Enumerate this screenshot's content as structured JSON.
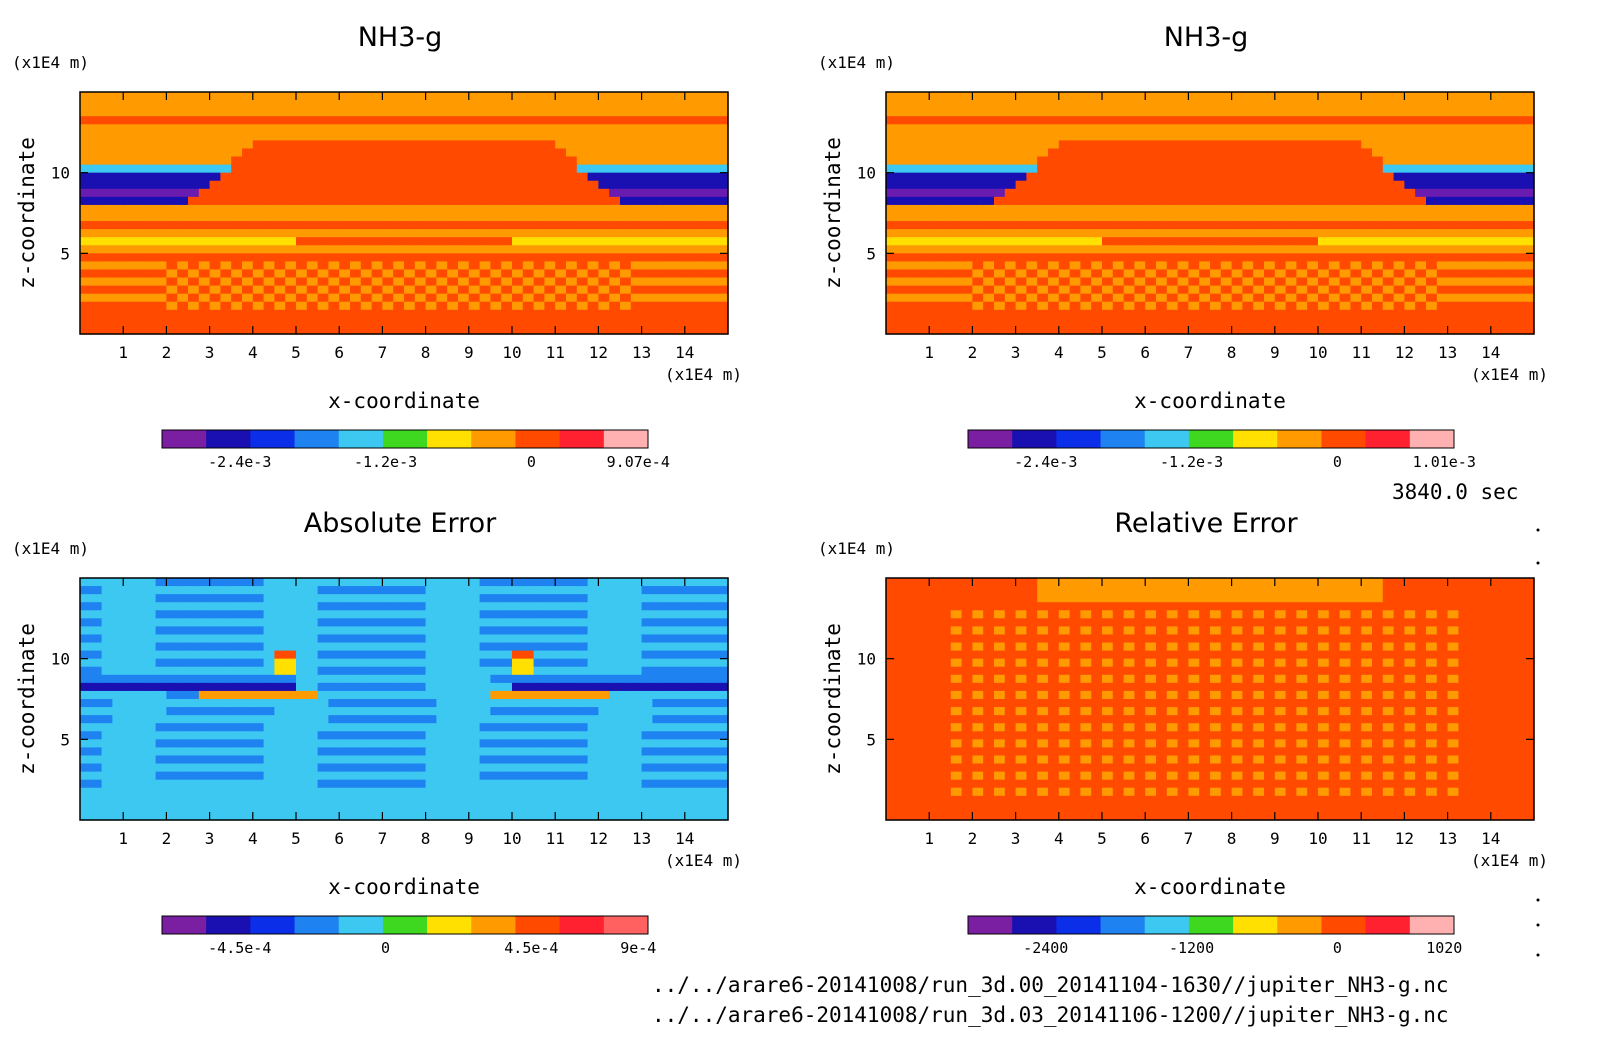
{
  "chart_data": [
    {
      "type": "heatmap",
      "title": "NH3-g",
      "xlabel": "x-coordinate",
      "ylabel": "z-coordinate",
      "x_unit": "(x1E4 m)",
      "z_unit": "(x1E4 m)",
      "x_ticks": [
        "1",
        "2",
        "3",
        "4",
        "5",
        "6",
        "7",
        "8",
        "9",
        "10",
        "11",
        "12",
        "13",
        "14"
      ],
      "z_ticks": [
        "5",
        "10"
      ],
      "xlim": [
        0,
        15
      ],
      "zlim": [
        0,
        15
      ],
      "colorbar": {
        "colors": [
          "#7B1FA2",
          "#1A0FB0",
          "#0B2EE8",
          "#1E82F0",
          "#3CC8F0",
          "#3ED820",
          "#FFE000",
          "#FF9A00",
          "#FF4A00",
          "#FF2030",
          "#FFB0B0"
        ],
        "tick_labels": [
          "-2.4e-3",
          "-1.2e-3",
          "0",
          "9.07e-4"
        ]
      },
      "pattern": "field"
    },
    {
      "type": "heatmap",
      "title": "NH3-g",
      "xlabel": "x-coordinate",
      "ylabel": "z-coordinate",
      "x_unit": "(x1E4 m)",
      "z_unit": "(x1E4 m)",
      "x_ticks": [
        "1",
        "2",
        "3",
        "4",
        "5",
        "6",
        "7",
        "8",
        "9",
        "10",
        "11",
        "12",
        "13",
        "14"
      ],
      "z_ticks": [
        "5",
        "10"
      ],
      "xlim": [
        0,
        15
      ],
      "zlim": [
        0,
        15
      ],
      "colorbar": {
        "colors": [
          "#7B1FA2",
          "#1A0FB0",
          "#0B2EE8",
          "#1E82F0",
          "#3CC8F0",
          "#3ED820",
          "#FFE000",
          "#FF9A00",
          "#FF4A00",
          "#FF2030",
          "#FFB0B0"
        ],
        "tick_labels": [
          "-2.4e-3",
          "-1.2e-3",
          "0",
          "1.01e-3"
        ]
      },
      "pattern": "field"
    },
    {
      "type": "heatmap",
      "title": "Absolute Error",
      "xlabel": "x-coordinate",
      "ylabel": "z-coordinate",
      "x_unit": "(x1E4 m)",
      "z_unit": "(x1E4 m)",
      "x_ticks": [
        "1",
        "2",
        "3",
        "4",
        "5",
        "6",
        "7",
        "8",
        "9",
        "10",
        "11",
        "12",
        "13",
        "14"
      ],
      "z_ticks": [
        "5",
        "10"
      ],
      "xlim": [
        0,
        15
      ],
      "zlim": [
        0,
        15
      ],
      "colorbar": {
        "colors": [
          "#7B1FA2",
          "#1A0FB0",
          "#0B2EE8",
          "#1E82F0",
          "#3CC8F0",
          "#3ED820",
          "#FFE000",
          "#FF9A00",
          "#FF4A00",
          "#FF2030",
          "#FF6060"
        ],
        "tick_labels": [
          "-4.5e-4",
          "0",
          "4.5e-4",
          "9e-4"
        ]
      },
      "pattern": "abs_error"
    },
    {
      "type": "heatmap",
      "title": "Relative Error",
      "xlabel": "x-coordinate",
      "ylabel": "z-coordinate",
      "x_unit": "(x1E4 m)",
      "z_unit": "(x1E4 m)",
      "x_ticks": [
        "1",
        "2",
        "3",
        "4",
        "5",
        "6",
        "7",
        "8",
        "9",
        "10",
        "11",
        "12",
        "13",
        "14"
      ],
      "z_ticks": [
        "5",
        "10"
      ],
      "xlim": [
        0,
        15
      ],
      "zlim": [
        0,
        15
      ],
      "colorbar": {
        "colors": [
          "#7B1FA2",
          "#1A0FB0",
          "#0B2EE8",
          "#1E82F0",
          "#3CC8F0",
          "#3ED820",
          "#FFE000",
          "#FF9A00",
          "#FF4A00",
          "#FF2030",
          "#FFB0B0"
        ],
        "tick_labels": [
          "-2400",
          "-1200",
          "0",
          "1020"
        ]
      },
      "pattern": "rel_error"
    }
  ],
  "timestamp": "3840.0 sec",
  "footer": {
    "path1": "../../arare6-20141008/run_3d.00_20141104-1630//jupiter_NH3-g.nc",
    "path2": "../../arare6-20141008/run_3d.03_20141106-1200//jupiter_NH3-g.nc"
  },
  "colors": {
    "orange": "#FF9A00",
    "red_orange": "#FF4A00",
    "yellow": "#FFE000",
    "purple": "#6A1BB0",
    "light_blue": "#3CC8F0",
    "mid_blue": "#1E82F0"
  }
}
